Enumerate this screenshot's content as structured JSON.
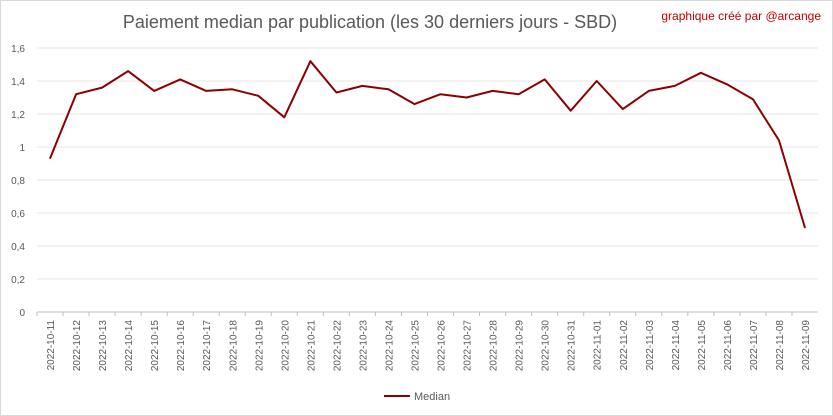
{
  "chart_data": {
    "type": "line",
    "title": "Paiement median par publication (les 30 derniers jours - SBD)",
    "credit": "graphique créé par @arcange",
    "x": [
      "2022-10-11",
      "2022-10-12",
      "2022-10-13",
      "2022-10-14",
      "2022-10-15",
      "2022-10-16",
      "2022-10-17",
      "2022-10-18",
      "2022-10-19",
      "2022-10-20",
      "2022-10-21",
      "2022-10-22",
      "2022-10-23",
      "2022-10-24",
      "2022-10-25",
      "2022-10-26",
      "2022-10-27",
      "2022-10-28",
      "2022-10-29",
      "2022-10-30",
      "2022-10-31",
      "2022-11-01",
      "2022-11-02",
      "2022-11-03",
      "2022-11-04",
      "2022-11-05",
      "2022-11-06",
      "2022-11-07",
      "2022-11-08",
      "2022-11-09"
    ],
    "series": [
      {
        "name": "Median",
        "color": "#8b0000",
        "values": [
          0.93,
          1.32,
          1.36,
          1.46,
          1.34,
          1.41,
          1.34,
          1.35,
          1.31,
          1.18,
          1.52,
          1.33,
          1.37,
          1.35,
          1.26,
          1.32,
          1.3,
          1.34,
          1.32,
          1.41,
          1.22,
          1.4,
          1.23,
          1.34,
          1.37,
          1.45,
          1.38,
          1.29,
          1.04,
          0.51
        ]
      }
    ],
    "y_ticks": [
      "0",
      "0,2",
      "0,4",
      "0,6",
      "0,8",
      "1",
      "1,2",
      "1,4",
      "1,6"
    ],
    "ylim": [
      0,
      1.6
    ],
    "grid": true,
    "legend_position": "bottom"
  }
}
